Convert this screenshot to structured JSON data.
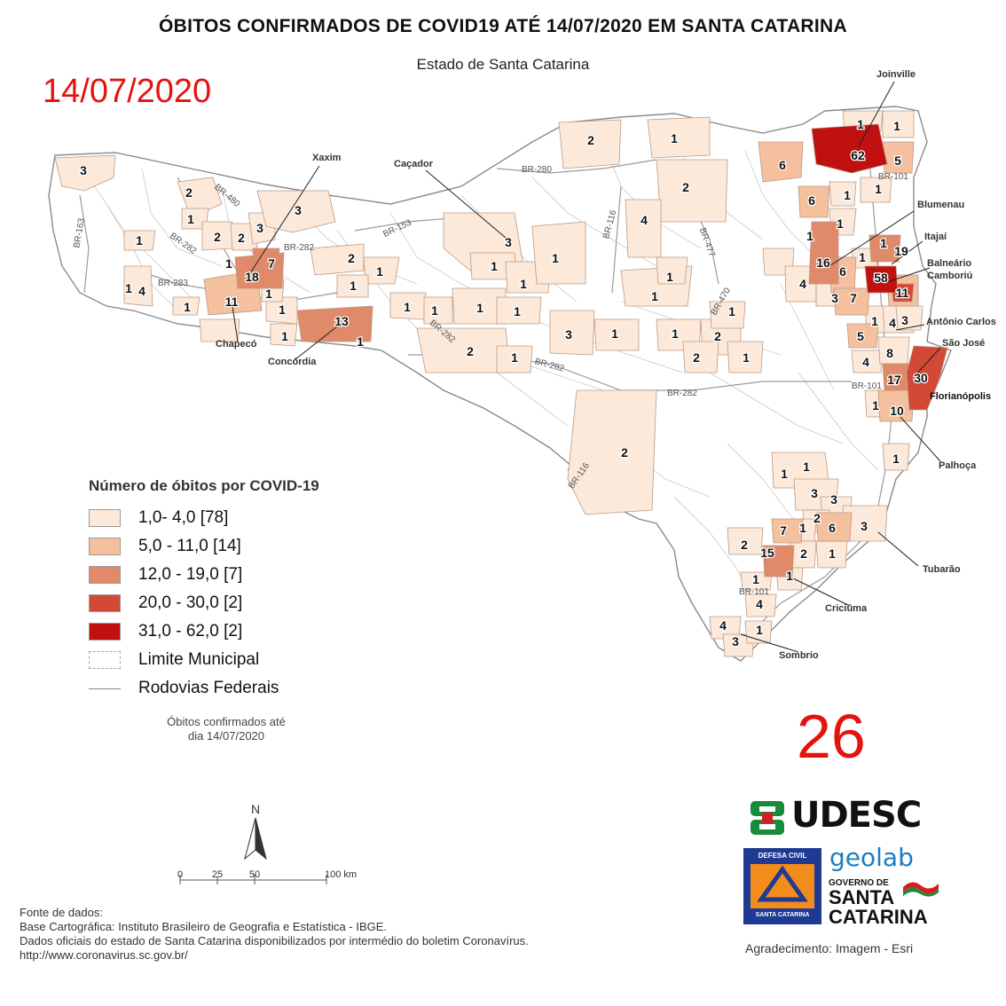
{
  "title": "ÓBITOS CONFIRMADOS DE COVID19 ATÉ 14/07/2020 EM SANTA CATARINA",
  "subtitle": "Estado de Santa Catarina",
  "date_overlay": "14/07/2020",
  "big_number": "26",
  "legend": {
    "title": "Número de óbitos por COVID-19",
    "classes": [
      {
        "label": "1,0- 4,0 [78]",
        "color": "#fde9d9"
      },
      {
        "label": "5,0 - 11,0 [14]",
        "color": "#f4c09e"
      },
      {
        "label": "12,0 - 19,0 [7]",
        "color": "#e08a6a"
      },
      {
        "label": "20,0 - 30,0 [2]",
        "color": "#d24a36"
      },
      {
        "label": "31,0 - 62,0 [2]",
        "color": "#c11010"
      }
    ],
    "boundary_label": "Limite Municipal",
    "road_label": "Rodovias Federais"
  },
  "note": [
    "Óbitos confirmados até",
    "dia 14/07/2020"
  ],
  "north_label": "N",
  "scale": {
    "ticks": [
      "0",
      "25",
      "50",
      "100 km"
    ]
  },
  "sources": [
    "Fonte de dados:",
    "Base Cartográfica: Instituto Brasileiro de Geografia e Estatística - IBGE.",
    "Dados oficiais do estado de Santa Catarina disponibilizados por intermédio do boletim Coronavírus.",
    "http://www.coronavirus.sc.gov.br/"
  ],
  "acknowledgement": "Agradecimento: Imagem - Esri",
  "logos": {
    "udesc": "UDESC",
    "geolab": "geolab",
    "defesa_civil_top": "DEFESA CIVIL",
    "defesa_civil_bottom": "SANTA CATARINA",
    "governo_line1": "GOVERNO DE",
    "governo_line2": "SANTA",
    "governo_line3": "CATARINA"
  },
  "city_labels": [
    "Joinville",
    "Xaxim",
    "Caçador",
    "Blumenau",
    "Itajaí",
    "Balneário",
    "Camboriú",
    "Antônio Carlos",
    "São José",
    "Florianópolis",
    "Palhoça",
    "Chapecó",
    "Concórdia",
    "Tubarão",
    "Criciúma",
    "Sombrio"
  ],
  "road_labels": [
    "BR-280",
    "BR-101",
    "BR-116",
    "BR-477",
    "BR-163",
    "BR-480",
    "BR-282",
    "BR-283",
    "BR-153",
    "BR-470",
    "BR-282",
    "BR-282",
    "BR-101",
    "BR-116",
    "BR-282",
    "BR-282",
    "BR-101"
  ],
  "counts": [
    "1",
    "1",
    "62",
    "5",
    "1",
    "6",
    "1",
    "6",
    "1",
    "1",
    "16",
    "19",
    "1",
    "58",
    "1",
    "4",
    "6",
    "11",
    "3",
    "7",
    "3",
    "1",
    "4",
    "5",
    "4",
    "8",
    "17",
    "30",
    "1",
    "10",
    "1",
    "2",
    "1",
    "2",
    "4",
    "1",
    "1",
    "1",
    "2",
    "1",
    "1",
    "3",
    "1",
    "2",
    "1",
    "3",
    "2",
    "1",
    "3",
    "3",
    "2",
    "1",
    "1",
    "2",
    "1",
    "1",
    "7",
    "4",
    "18",
    "11",
    "1",
    "1",
    "13",
    "1",
    "1",
    "1",
    "1",
    "2",
    "2",
    "1",
    "1",
    "3",
    "1",
    "1",
    "1",
    "2",
    "1",
    "1",
    "1",
    "1",
    "3",
    "3",
    "2",
    "7",
    "1",
    "6",
    "3",
    "2",
    "15",
    "2",
    "1",
    "1",
    "1",
    "4",
    "4",
    "1",
    "3"
  ]
}
